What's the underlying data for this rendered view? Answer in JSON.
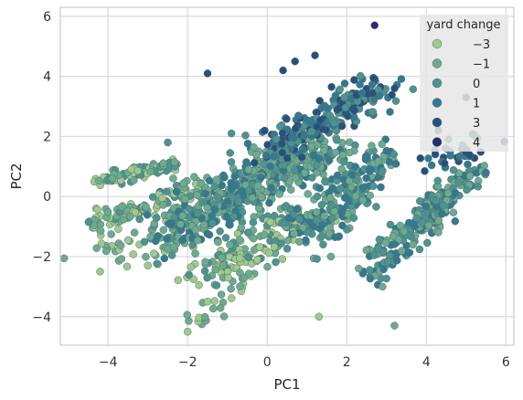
{
  "chart_data": {
    "type": "scatter",
    "title": "",
    "xlabel": "PC1",
    "ylabel": "PC2",
    "xlim": [
      -5.2,
      6.2
    ],
    "ylim": [
      -4.95,
      6.3
    ],
    "xticks": [
      -4,
      -2,
      0,
      2,
      4,
      6
    ],
    "xtick_labels": [
      "−4",
      "−2",
      "0",
      "2",
      "4",
      "6"
    ],
    "yticks": [
      -4,
      -2,
      0,
      2,
      4,
      6
    ],
    "ytick_labels": [
      "−4",
      "−2",
      "0",
      "2",
      "4",
      "6"
    ],
    "grid": true,
    "legend": {
      "title": "yard change",
      "placement": "top-right",
      "entries": [
        {
          "label": "−3",
          "color": "#9ccb8c"
        },
        {
          "label": "−1",
          "color": "#6aac8f"
        },
        {
          "label": "0",
          "color": "#4a9591"
        },
        {
          "label": "1",
          "color": "#307b92"
        },
        {
          "label": "3",
          "color": "#24527f"
        },
        {
          "label": "4",
          "color": "#272f6e"
        }
      ]
    },
    "clusters": [
      {
        "name": "upper-left band",
        "from": [
          -4.2,
          0.5
        ],
        "to": [
          -2.3,
          1.1
        ],
        "spread": 0.12,
        "n": 90,
        "colors": [
          "#6aac8f",
          "#4a9591",
          "#9ccb8c"
        ]
      },
      {
        "name": "left lower band",
        "from": [
          -4.4,
          -0.9
        ],
        "to": [
          -1.4,
          0.4
        ],
        "spread": 0.15,
        "n": 110,
        "colors": [
          "#6aac8f",
          "#9ccb8c",
          "#4a9591"
        ]
      },
      {
        "name": "left scattered low",
        "from": [
          -4.6,
          -2.0
        ],
        "to": [
          -2.3,
          -1.2
        ],
        "spread": 0.4,
        "n": 40,
        "colors": [
          "#9ccb8c",
          "#6aac8f"
        ]
      },
      {
        "name": "central diagonal",
        "from": [
          -2.5,
          -1.2
        ],
        "to": [
          1.5,
          1.8
        ],
        "spread": 0.45,
        "n": 520,
        "colors": [
          "#6aac8f",
          "#4a9591",
          "#307b92",
          "#6aac8f"
        ]
      },
      {
        "name": "center lower fan",
        "from": [
          -1.5,
          -2.6
        ],
        "to": [
          0.8,
          -0.8
        ],
        "spread": 0.35,
        "n": 150,
        "colors": [
          "#6aac8f",
          "#9ccb8c",
          "#4a9591"
        ]
      },
      {
        "name": "lower left tail",
        "from": [
          -1.8,
          -4.2
        ],
        "to": [
          -0.5,
          -2.6
        ],
        "spread": 0.2,
        "n": 25,
        "colors": [
          "#9ccb8c",
          "#6aac8f"
        ]
      },
      {
        "name": "upper blue ridge",
        "from": [
          0.0,
          1.5
        ],
        "to": [
          2.8,
          3.6
        ],
        "spread": 0.3,
        "n": 230,
        "colors": [
          "#307b92",
          "#24527f",
          "#4a9591"
        ]
      },
      {
        "name": "right center diagonal",
        "from": [
          1.0,
          -1.2
        ],
        "to": [
          3.0,
          1.3
        ],
        "spread": 0.35,
        "n": 230,
        "colors": [
          "#4a9591",
          "#6aac8f",
          "#307b92"
        ]
      },
      {
        "name": "right lower diagonal",
        "from": [
          2.6,
          -2.5
        ],
        "to": [
          4.6,
          0.0
        ],
        "spread": 0.25,
        "n": 150,
        "colors": [
          "#4a9591",
          "#6aac8f",
          "#307b92"
        ]
      },
      {
        "name": "far right band",
        "from": [
          3.5,
          -1.2
        ],
        "to": [
          5.2,
          0.9
        ],
        "spread": 0.2,
        "n": 120,
        "colors": [
          "#307b92",
          "#4a9591",
          "#6aac8f"
        ]
      },
      {
        "name": "far right top",
        "from": [
          4.0,
          0.8
        ],
        "to": [
          5.5,
          2.0
        ],
        "spread": 0.25,
        "n": 30,
        "colors": [
          "#307b92",
          "#24527f"
        ]
      }
    ],
    "points": [
      {
        "x": 2.7,
        "y": 5.7,
        "color": "#272f6e"
      },
      {
        "x": -1.5,
        "y": 4.1,
        "color": "#24527f"
      },
      {
        "x": 0.7,
        "y": 4.5,
        "color": "#24527f"
      },
      {
        "x": 1.2,
        "y": 4.7,
        "color": "#24527f"
      },
      {
        "x": 0.4,
        "y": 4.2,
        "color": "#24527f"
      },
      {
        "x": 3.2,
        "y": -4.3,
        "color": "#6aac8f"
      },
      {
        "x": -2.0,
        "y": -4.5,
        "color": "#9ccb8c"
      },
      {
        "x": -3.0,
        "y": -2.3,
        "color": "#9ccb8c"
      },
      {
        "x": -4.2,
        "y": -2.5,
        "color": "#9ccb8c"
      },
      {
        "x": 2.3,
        "y": -2.4,
        "color": "#6aac8f"
      },
      {
        "x": 2.9,
        "y": -3.0,
        "color": "#6aac8f"
      },
      {
        "x": 5.5,
        "y": 0.8,
        "color": "#307b92"
      },
      {
        "x": 5.0,
        "y": 3.3,
        "color": "#24527f"
      },
      {
        "x": 3.2,
        "y": 3.6,
        "color": "#24527f"
      },
      {
        "x": -0.9,
        "y": 2.1,
        "color": "#4a9591"
      },
      {
        "x": -2.5,
        "y": 1.8,
        "color": "#4a9591"
      },
      {
        "x": 4.3,
        "y": 2.2,
        "color": "#24527f"
      },
      {
        "x": 1.3,
        "y": -4.0,
        "color": "#9ccb8c"
      },
      {
        "x": -1.5,
        "y": -3.5,
        "color": "#9ccb8c"
      },
      {
        "x": 1.6,
        "y": -2.0,
        "color": "#6aac8f"
      }
    ]
  }
}
